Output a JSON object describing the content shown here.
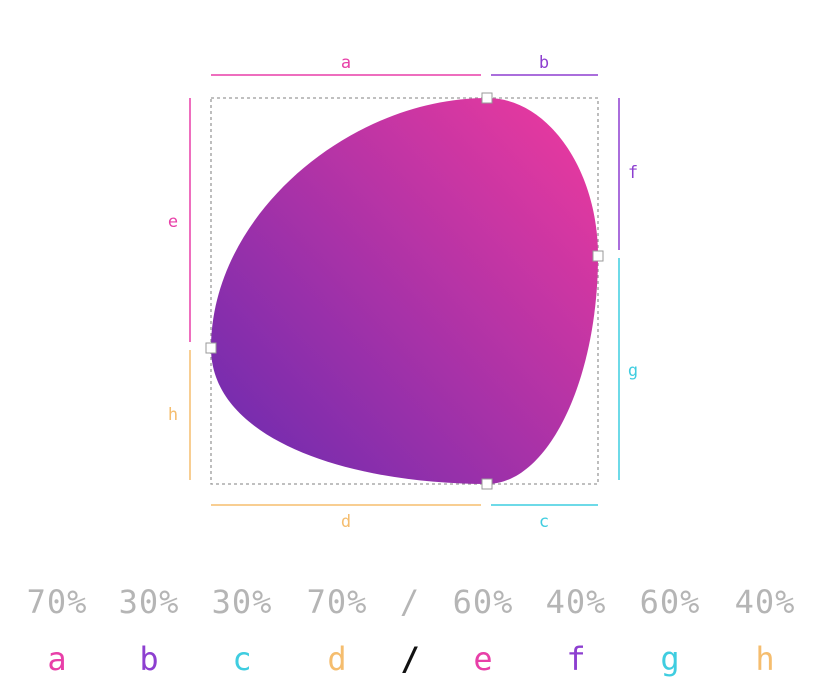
{
  "colors": {
    "a": "#e83fa8",
    "b": "#8d3fd0",
    "c": "#3fcde0",
    "d": "#f5bd6e",
    "e": "#e83fa8",
    "f": "#8d3fd0",
    "g": "#3fcde0",
    "h": "#f5bd6e",
    "slash": "#111111",
    "value_text": "#b5b5b5",
    "gradient_start": "#6a2bb0",
    "gradient_end": "#ee3a9e",
    "bounding_box": "#9a9a9a"
  },
  "dimension_labels": {
    "a": "a",
    "b": "b",
    "c": "c",
    "d": "d",
    "e": "e",
    "f": "f",
    "g": "g",
    "h": "h"
  },
  "border_radius_values": {
    "a": "70%",
    "b": "30%",
    "c": "30%",
    "d": "70%",
    "slash": "/",
    "e": "60%",
    "f": "40%",
    "g": "60%",
    "h": "40%"
  },
  "legend": {
    "a": "a",
    "b": "b",
    "c": "c",
    "d": "d",
    "slash": "/",
    "e": "e",
    "f": "f",
    "g": "g",
    "h": "h"
  }
}
